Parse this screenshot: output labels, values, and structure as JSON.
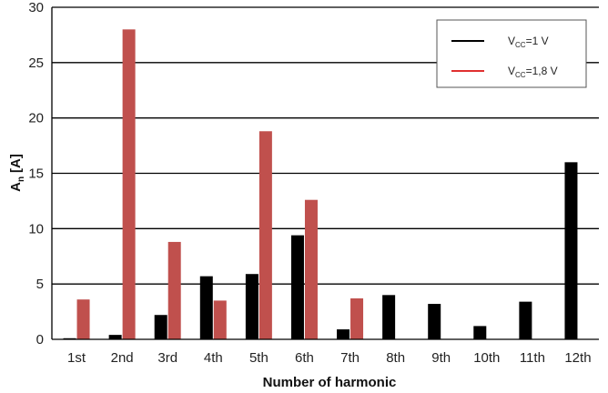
{
  "chart_data": {
    "type": "bar",
    "xlabel": "Number of harmonic",
    "ylabel_main": "A",
    "ylabel_sub": "n",
    "ylabel_unit": "[A]",
    "ylim": [
      0,
      30
    ],
    "yticks": [
      0,
      5,
      10,
      15,
      20,
      25,
      30
    ],
    "grid": "horizontal",
    "legend_position": "top-right",
    "categories": [
      "1st",
      "2nd",
      "3rd",
      "4th",
      "5th",
      "6th",
      "7th",
      "8th",
      "9th",
      "10th",
      "11th",
      "12th"
    ],
    "series": [
      {
        "name": "VCC=1 V",
        "label_main": "V",
        "label_sub": "CC",
        "label_rest": "=1 V",
        "color": "#000000",
        "values": [
          0.1,
          0.4,
          2.2,
          5.7,
          5.9,
          9.4,
          0.9,
          4.0,
          3.2,
          1.2,
          3.4,
          16.0
        ]
      },
      {
        "name": "VCC=1,8 V",
        "label_main": "V",
        "label_sub": "CC",
        "label_rest": "=1,8 V",
        "color": "#c0504d",
        "values": [
          3.6,
          28.0,
          8.8,
          3.5,
          18.8,
          12.6,
          3.7,
          null,
          null,
          null,
          null,
          null
        ]
      }
    ]
  }
}
